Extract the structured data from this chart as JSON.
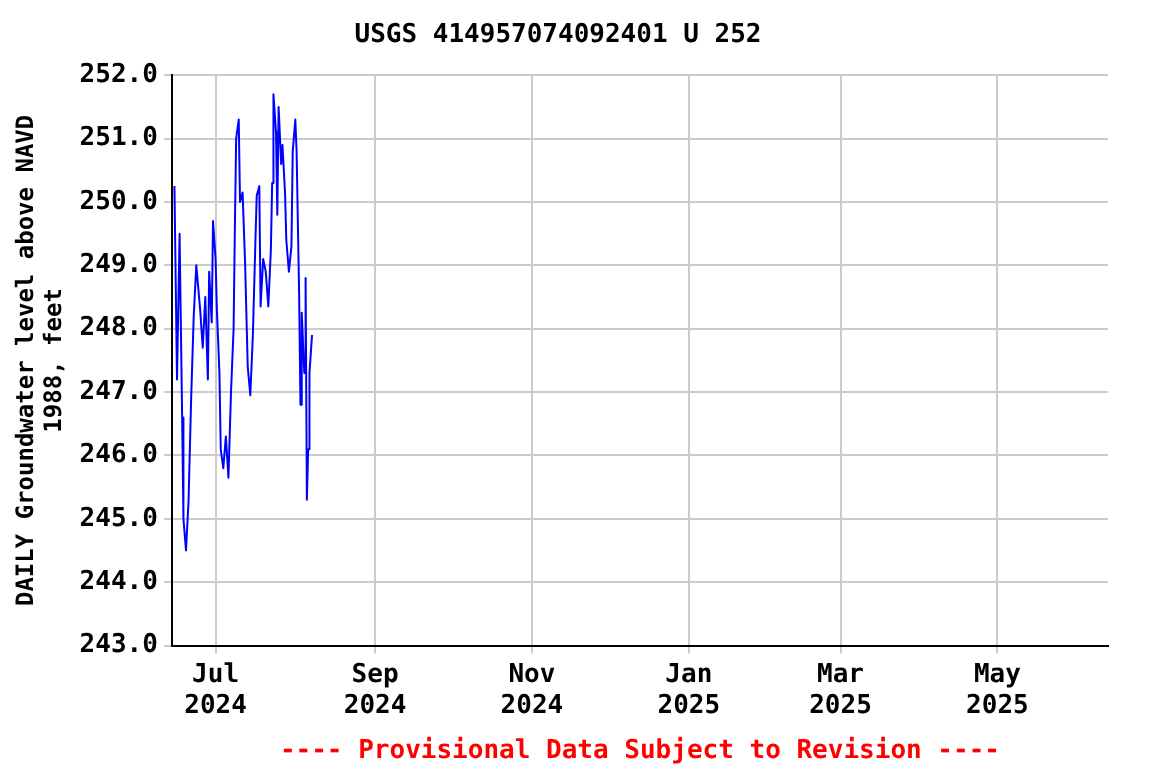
{
  "chart_data": {
    "type": "line",
    "title": "USGS 414957074092401 U 252",
    "ylabel": "DAILY Groundwater level above NAVD 1988, feet",
    "annotations": [
      "---- Provisional Data Subject to Revision ----"
    ],
    "x": [
      "2024-06-15",
      "2024-06-16",
      "2024-06-17",
      "2024-06-18",
      "2024-06-18T12:00",
      "2024-06-19T12:00",
      "2024-06-20T12:00",
      "2024-06-21T12:00",
      "2024-06-22T12:00",
      "2024-06-23T12:00",
      "2024-06-25",
      "2024-06-26",
      "2024-06-27",
      "2024-06-28",
      "2024-06-28T12:00",
      "2024-06-29T12:00",
      "2024-06-30",
      "2024-07-01",
      "2024-07-01T12:00",
      "2024-07-02T12:00",
      "2024-07-03",
      "2024-07-04",
      "2024-07-05",
      "2024-07-06",
      "2024-07-07",
      "2024-07-08",
      "2024-07-08T12:00",
      "2024-07-09",
      "2024-07-10",
      "2024-07-10T12:00",
      "2024-07-11T12:00",
      "2024-07-12T12:00",
      "2024-07-13T12:00",
      "2024-07-14T12:00",
      "2024-07-15T12:00",
      "2024-07-16T12:00",
      "2024-07-17",
      "2024-07-18",
      "2024-07-18T12:00",
      "2024-07-19T12:00",
      "2024-07-20T12:00",
      "2024-07-21T12:00",
      "2024-07-22T12:00",
      "2024-07-23",
      "2024-07-23T12:00",
      "2024-07-24T12:00",
      "2024-07-25",
      "2024-07-25T12:00",
      "2024-07-26T12:00",
      "2024-07-27",
      "2024-07-28",
      "2024-07-28T12:00",
      "2024-07-29T12:00",
      "2024-07-30T12:00",
      "2024-07-31",
      "2024-08-01",
      "2024-08-01T12:00",
      "2024-08-02T12:00",
      "2024-08-03",
      "2024-08-03T12:00",
      "2024-08-04T12:00",
      "2024-08-05",
      "2024-08-05T12:00",
      "2024-08-06",
      "2024-08-06T12:00",
      "2024-08-07T12:00"
    ],
    "series": [
      {
        "color": "#0000ff",
        "values": [
          250.25,
          247.2,
          249.5,
          246.6,
          245.0,
          244.5,
          245.3,
          246.9,
          248.2,
          249.0,
          248.3,
          247.7,
          248.5,
          247.2,
          248.9,
          248.1,
          249.7,
          249.1,
          248.3,
          247.3,
          246.1,
          245.8,
          246.3,
          245.65,
          247.0,
          248.0,
          249.6,
          251.0,
          251.3,
          250.0,
          250.15,
          249.0,
          247.4,
          246.95,
          247.9,
          249.4,
          250.1,
          250.25,
          248.35,
          249.1,
          248.9,
          248.35,
          249.25,
          250.3,
          251.7,
          251.1,
          249.8,
          251.5,
          250.6,
          250.9,
          250.15,
          249.4,
          248.9,
          249.3,
          250.8,
          251.3,
          250.8,
          248.5,
          246.8,
          248.25,
          247.3,
          248.8,
          245.3,
          246.1,
          247.3,
          247.9
        ]
      }
    ],
    "xlim": [
      "2024-06-14",
      "2025-06-13"
    ],
    "xticks": [
      {
        "value": "2024-07-01",
        "label": "Jul 2024"
      },
      {
        "value": "2024-09-01",
        "label": "Sep 2024"
      },
      {
        "value": "2024-11-01",
        "label": "Nov 2024"
      },
      {
        "value": "2025-01-01",
        "label": "Jan 2025"
      },
      {
        "value": "2025-03-01",
        "label": "Mar 2025"
      },
      {
        "value": "2025-05-01",
        "label": "May 2025"
      }
    ],
    "ylim": [
      243,
      252
    ],
    "yticks": [
      {
        "value": 243,
        "label": "243.0"
      },
      {
        "value": 244,
        "label": "244.0"
      },
      {
        "value": 245,
        "label": "245.0"
      },
      {
        "value": 246,
        "label": "246.0"
      },
      {
        "value": 247,
        "label": "247.0"
      },
      {
        "value": 248,
        "label": "248.0"
      },
      {
        "value": 249,
        "label": "249.0"
      },
      {
        "value": 250,
        "label": "250.0"
      },
      {
        "value": 251,
        "label": "251.0"
      },
      {
        "value": 252,
        "label": "252.0"
      }
    ],
    "grid": true,
    "legend": false,
    "marker": "none",
    "line_style": "solid"
  }
}
